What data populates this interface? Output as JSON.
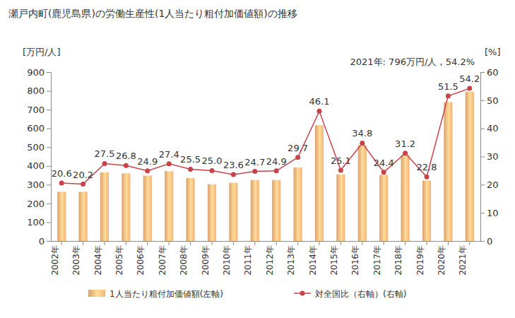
{
  "chart_data": {
    "type": "bar",
    "title": "瀬戸内町(鹿児島県)の労働生産性(1人当たり粗付加価値額)の推移",
    "annotation": "2021年: 796万円/人 , 54.2%",
    "y_label": "[万円/人]",
    "y2_label": "[%]",
    "categories": [
      "2002年",
      "2003年",
      "2004年",
      "2005年",
      "2006年",
      "2007年",
      "2008年",
      "2009年",
      "2010年",
      "2011年",
      "2012年",
      "2013年",
      "2014年",
      "2015年",
      "2016年",
      "2017年",
      "2018年",
      "2019年",
      "2020年",
      "2021年"
    ],
    "series": [
      {
        "name": "1人当たり粗付加価値額(左軸)",
        "type": "bar",
        "color": "#f4b27a",
        "values": [
          262,
          262,
          365,
          360,
          348,
          372,
          335,
          302,
          310,
          325,
          325,
          392,
          617,
          355,
          510,
          352,
          458,
          322,
          740,
          796
        ]
      },
      {
        "name": "対全国比（右軸）(右軸)",
        "type": "line",
        "axis": "y2",
        "color": "#c8424a",
        "marker": "circle",
        "data_labels": true,
        "values": [
          20.6,
          20.2,
          27.5,
          26.8,
          24.9,
          27.4,
          25.5,
          25.0,
          23.6,
          24.7,
          24.9,
          29.7,
          46.1,
          25.1,
          34.8,
          24.4,
          31.2,
          22.8,
          51.5,
          54.2
        ],
        "value_labels": [
          "20.6",
          "20.2",
          "27.5",
          "26.8",
          "24.9",
          "27.4",
          "25.5",
          "25.0",
          "23.6",
          "24.7",
          "24.9",
          "29.7",
          "46.1",
          "25.1",
          "34.8",
          "24.4",
          "31.2",
          "22.8",
          "51.5",
          "54.2"
        ]
      }
    ],
    "ylim": [
      0,
      900
    ],
    "yticks": [
      0,
      100,
      200,
      300,
      400,
      500,
      600,
      700,
      800,
      900
    ],
    "y2lim": [
      0,
      60
    ],
    "y2ticks": [
      0,
      10,
      20,
      30,
      40,
      50,
      60
    ],
    "grid": false,
    "legend": "bottom"
  }
}
